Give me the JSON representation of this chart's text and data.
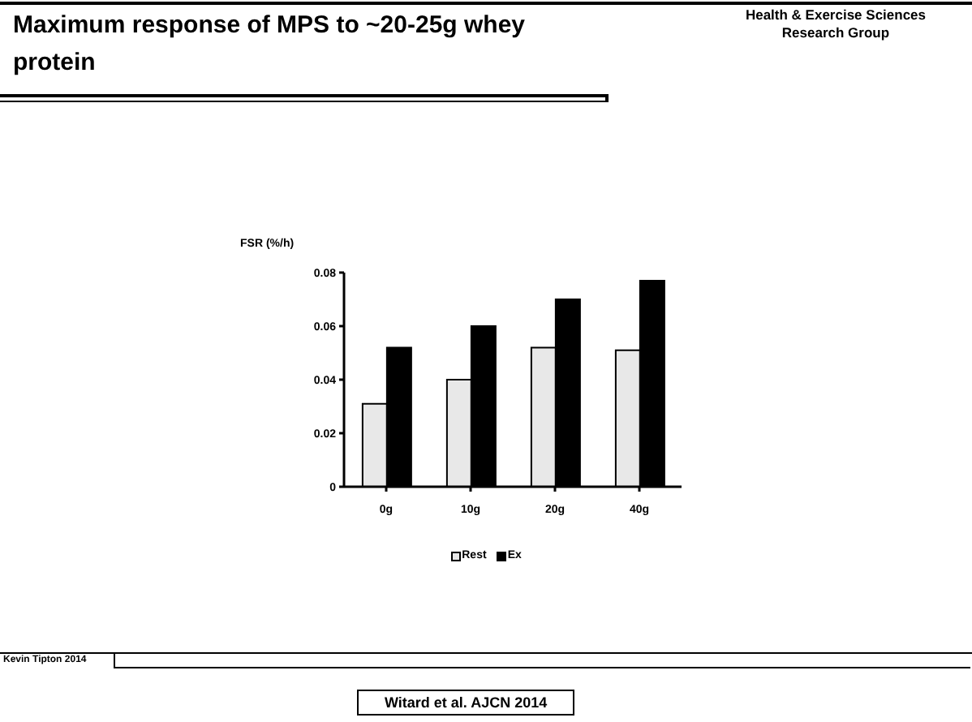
{
  "chart_data": {
    "type": "bar",
    "title": "Maximum response of MPS to ~20-25g whey protein",
    "ylabel": "FSR (%/h)",
    "categories": [
      "0g",
      "10g",
      "20g",
      "40g"
    ],
    "series": [
      {
        "name": "Rest",
        "color": "#e8e8e8",
        "values": [
          0.031,
          0.04,
          0.052,
          0.051
        ]
      },
      {
        "name": "Ex",
        "color": "#000000",
        "values": [
          0.052,
          0.06,
          0.07,
          0.077
        ]
      }
    ],
    "ylim": [
      0,
      0.08
    ],
    "yticks": [
      0,
      0.02,
      0.04,
      0.06,
      0.08
    ],
    "grid": false,
    "legend": "bottom",
    "annotations": [
      "Health & Exercise Sciences Research Group",
      "Kevin Tipton 2014",
      "Witard et al. AJCN 2014"
    ]
  }
}
